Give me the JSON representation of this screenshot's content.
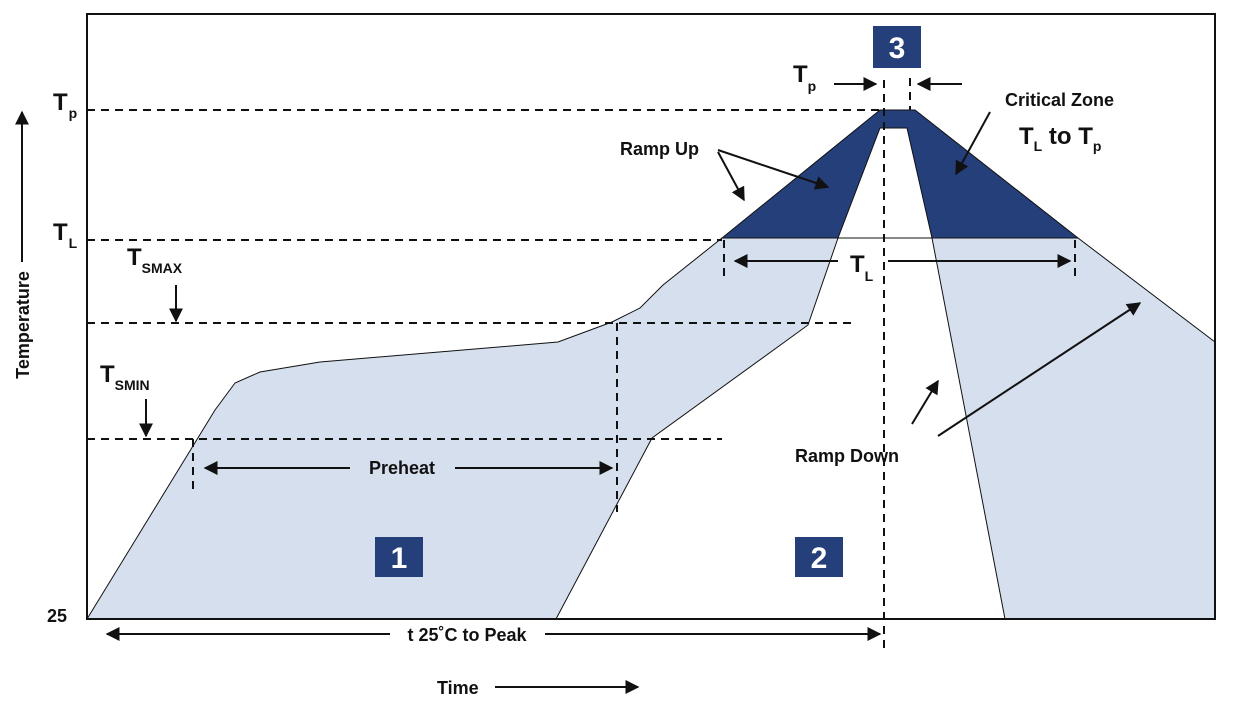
{
  "colors": {
    "dark_zone": "#253f7a",
    "light_zone": "#d6dfee",
    "badge": "#253f7a",
    "line": "#111111"
  },
  "y_axis": {
    "label": "Temperature",
    "ticks": {
      "tp": {
        "main": "T",
        "sub": "p"
      },
      "tl": {
        "main": "T",
        "sub": "L"
      },
      "base": "25"
    }
  },
  "x_axis": {
    "label": "Time"
  },
  "levels": {
    "tsmax": {
      "main": "T",
      "sub": "SMAX"
    },
    "tsmin": {
      "main": "T",
      "sub": "SMIN"
    }
  },
  "annotations": {
    "preheat": "Preheat",
    "ramp_up": "Ramp Up",
    "ramp_down": "Ramp Down",
    "critical_zone": "Critical Zone",
    "critical_range": {
      "t1": "T",
      "s1": "L",
      "mid": " to ",
      "t2": "T",
      "s2": "p"
    },
    "tl_span": {
      "main": "T",
      "sub": "L"
    },
    "tp_span": {
      "main": "T",
      "sub": "p"
    },
    "time_to_peak": "t 25˚C to Peak"
  },
  "badges": [
    "1",
    "2",
    "3"
  ]
}
